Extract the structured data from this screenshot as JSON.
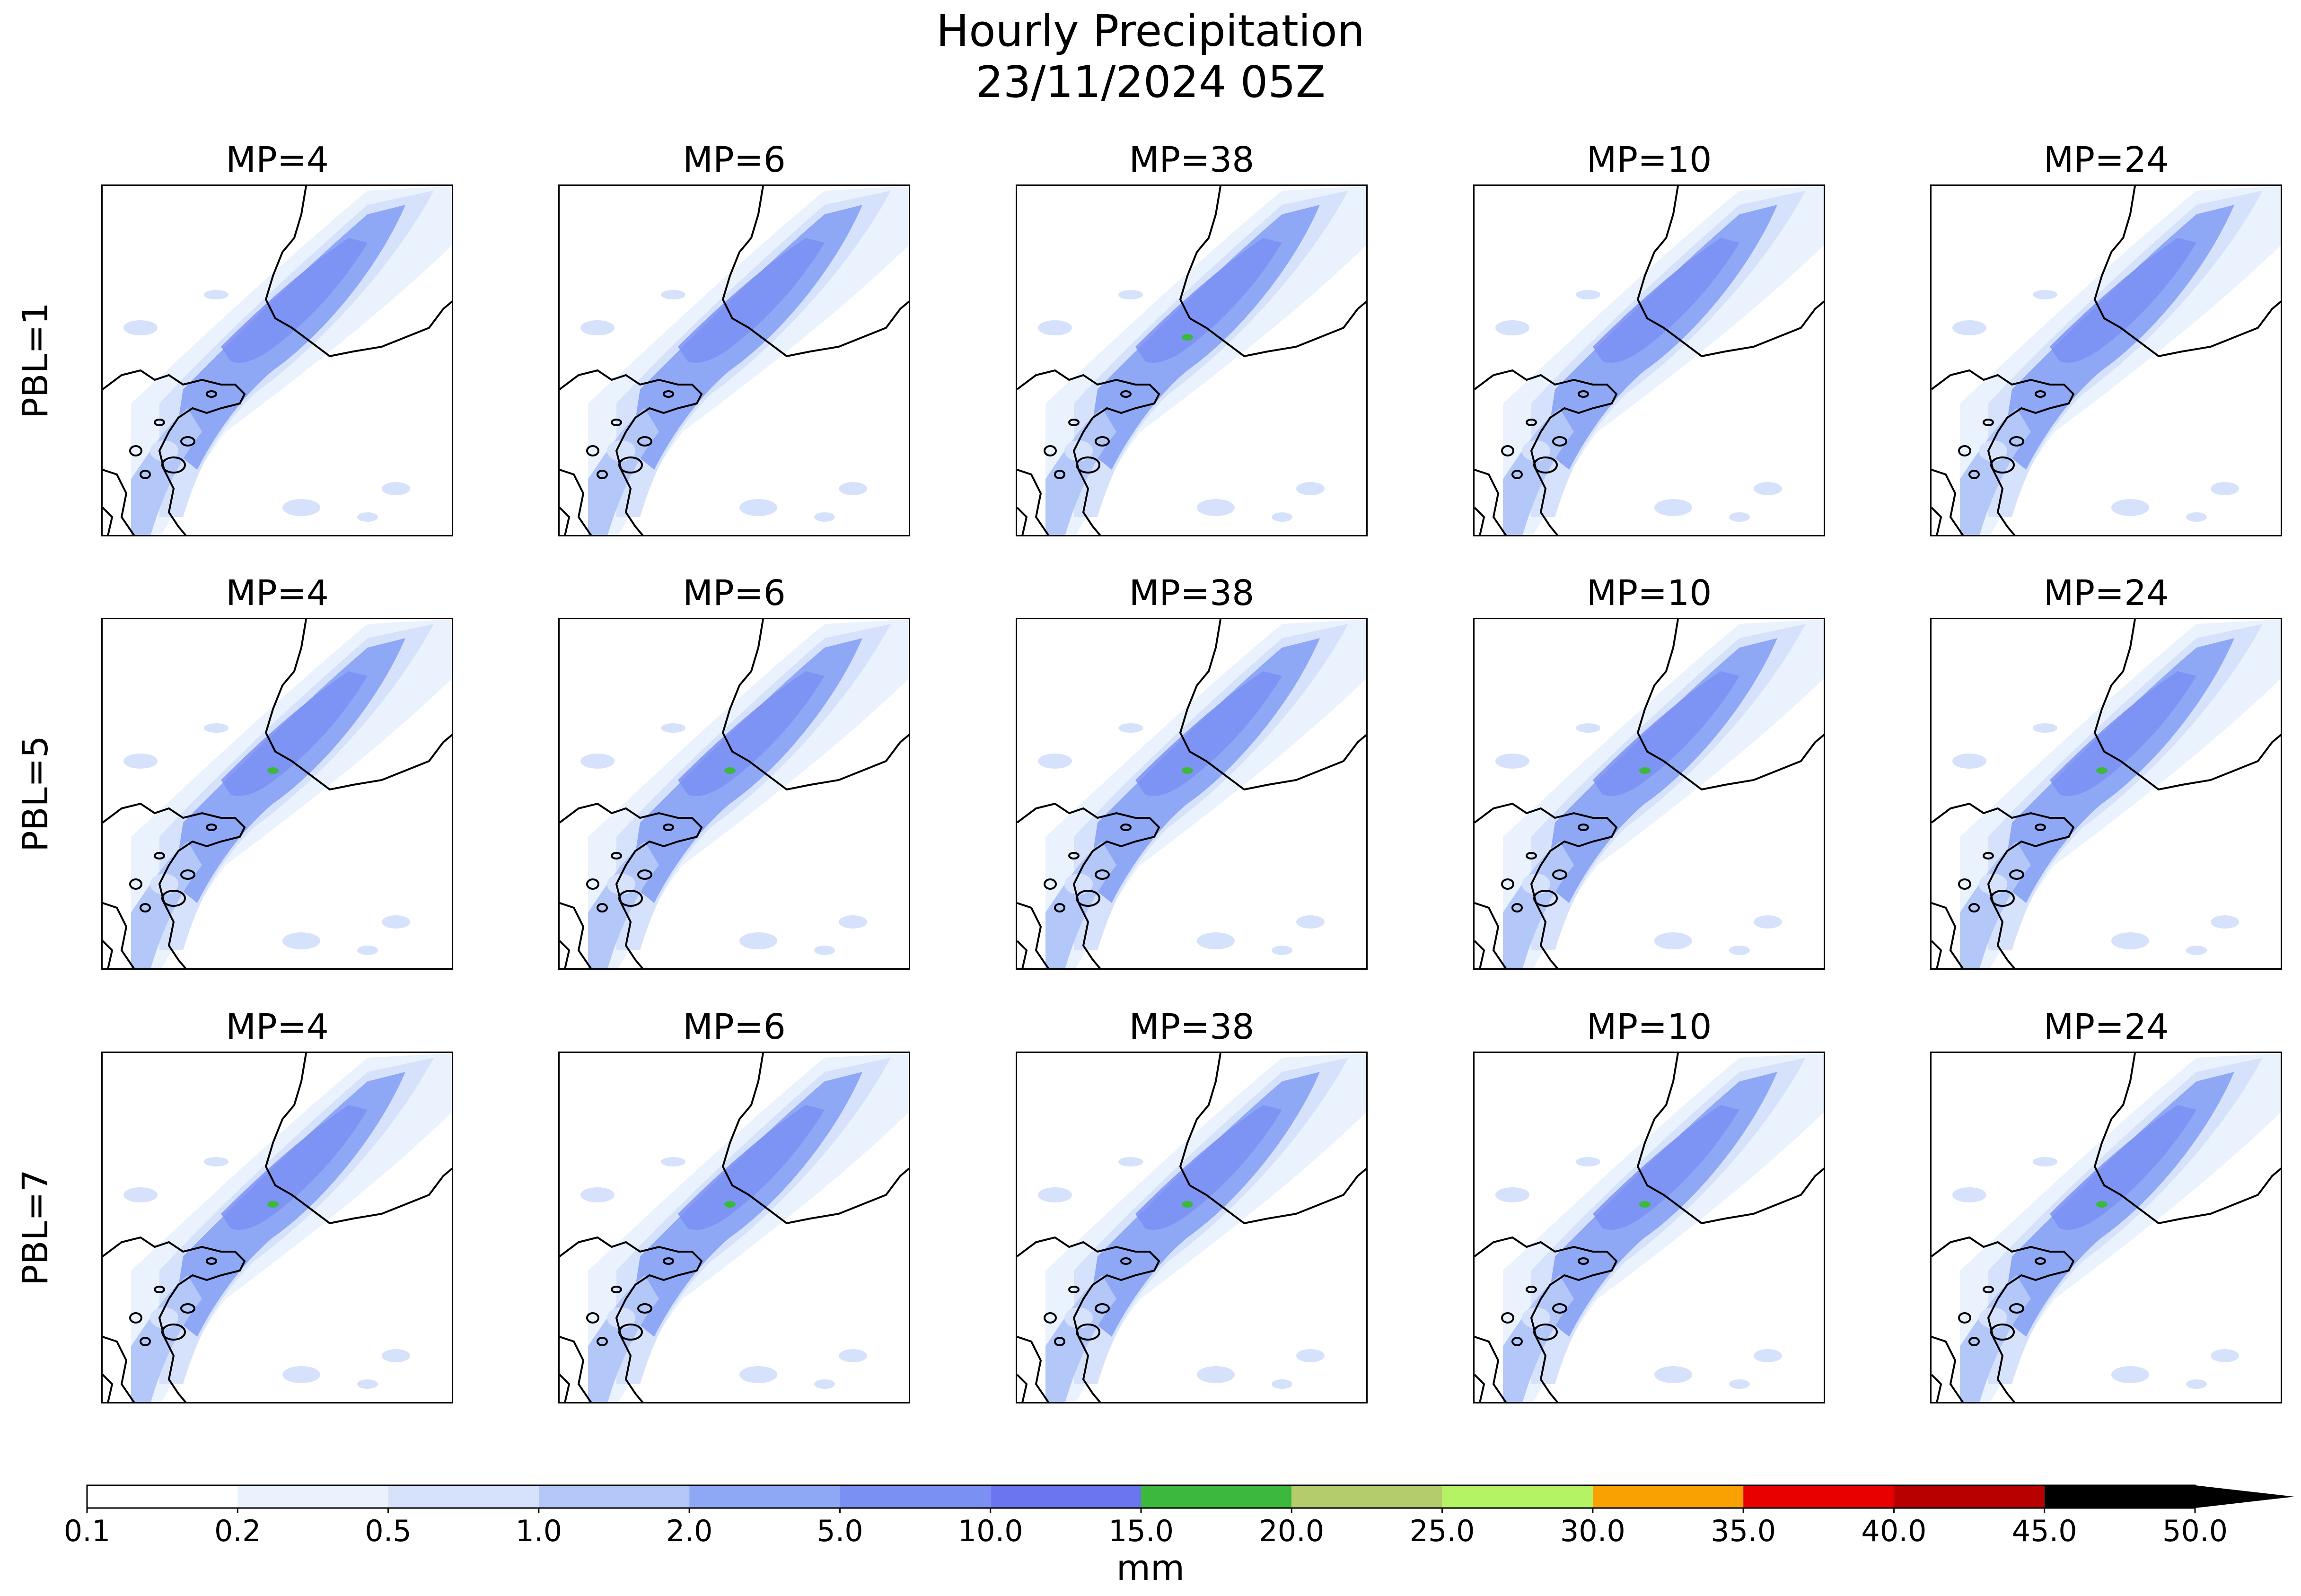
{
  "title": "Hourly Precipitation",
  "subtitle": "23/11/2024 05Z",
  "columns": [
    "MP=4",
    "MP=6",
    "MP=38",
    "MP=10",
    "MP=24"
  ],
  "rows": [
    "PBL=1",
    "PBL=5",
    "PBL=7"
  ],
  "colorbar": {
    "label": "mm",
    "ticks": [
      "0.1",
      "0.2",
      "0.5",
      "1.0",
      "2.0",
      "5.0",
      "10.0",
      "15.0",
      "20.0",
      "25.0",
      "30.0",
      "35.0",
      "40.0",
      "45.0",
      "50.0"
    ],
    "colors": [
      "#ffffff",
      "#eaf3fd",
      "#d6e2fb",
      "#b3c8f9",
      "#8ea8f6",
      "#7b90f3",
      "#6a75ef",
      "#3cb83c",
      "#b4cc6c",
      "#b4f464",
      "#f9a100",
      "#e80000",
      "#b80000",
      "#000000"
    ],
    "extend": "max"
  },
  "colors": {
    "coastline": "#000000",
    "background": "#ffffff"
  }
}
